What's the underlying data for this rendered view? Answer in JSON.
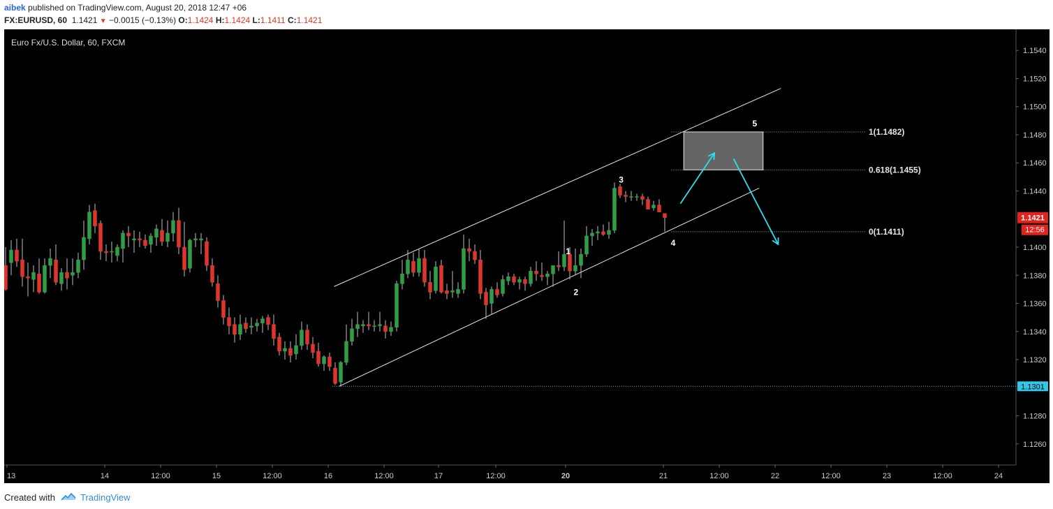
{
  "header": {
    "user": "aibek",
    "published_text": "published on TradingView.com, August 20, 2018 12:47 +06",
    "symbol": "FX:EURUSD, 60",
    "last": "1.1421",
    "change_arrow": "▼",
    "change": "−0.0015 (−0.13%)",
    "o_label": "O:",
    "o_value": "1.1424",
    "h_label": "H:",
    "h_value": "1.1424",
    "l_label": "L:",
    "l_value": "1.1411",
    "c_label": "C:",
    "c_value": "1.1421"
  },
  "footer": {
    "created_with": "Created with",
    "brand": "TradingView",
    "logo_icon": "tradingview-cloud-icon"
  },
  "colors": {
    "background": "#000000",
    "up": "#2ea043",
    "down": "#e0352b",
    "accent_cyan": "#28e0f0",
    "last_price": "#e0241d",
    "level_line": "#34c6e8"
  },
  "chart_data": {
    "type": "candlestick",
    "title": "Euro Fx/U.S. Dollar, 60, FXCM",
    "ylim": [
      1.1245,
      1.1555
    ],
    "y_ticks": [
      "1.1540",
      "1.1520",
      "1.1500",
      "1.1480",
      "1.1460",
      "1.1440",
      "1.1400",
      "1.1380",
      "1.1360",
      "1.1340",
      "1.1320",
      "1.1280",
      "1.1260"
    ],
    "x_ticks": [
      "13",
      "14",
      "12:00",
      "15",
      "12:00",
      "16",
      "12:00",
      "17",
      "12:00",
      "20",
      "21",
      "12:00",
      "22",
      "12:00",
      "23",
      "12:00",
      "24"
    ],
    "last_price": {
      "value": "1.1421",
      "time": "12:56"
    },
    "level_marker": {
      "value": 1.1301,
      "label": "1.1301"
    },
    "candles": [
      [
        1.1387,
        1.14,
        1.1369,
        1.137
      ],
      [
        1.1389,
        1.1405,
        1.138,
        1.1398
      ],
      [
        1.1398,
        1.1406,
        1.1386,
        1.139
      ],
      [
        1.1391,
        1.1406,
        1.1372,
        1.1379
      ],
      [
        1.1379,
        1.1389,
        1.1365,
        1.1378
      ],
      [
        1.1377,
        1.1387,
        1.1368,
        1.1382
      ],
      [
        1.1381,
        1.1392,
        1.1367,
        1.1368
      ],
      [
        1.1368,
        1.1392,
        1.1367,
        1.1387
      ],
      [
        1.1387,
        1.1399,
        1.1378,
        1.1392
      ],
      [
        1.1391,
        1.1402,
        1.1373,
        1.1375
      ],
      [
        1.1374,
        1.1385,
        1.1369,
        1.1382
      ],
      [
        1.1382,
        1.1392,
        1.137,
        1.1378
      ],
      [
        1.138,
        1.1392,
        1.1373,
        1.1382
      ],
      [
        1.1382,
        1.1396,
        1.1378,
        1.1391
      ],
      [
        1.1391,
        1.1419,
        1.1384,
        1.1407
      ],
      [
        1.1406,
        1.143,
        1.1402,
        1.1425
      ],
      [
        1.1426,
        1.1431,
        1.141,
        1.1415
      ],
      [
        1.1417,
        1.1419,
        1.1391,
        1.1397
      ],
      [
        1.1397,
        1.1402,
        1.139,
        1.1396
      ],
      [
        1.1397,
        1.1404,
        1.1389,
        1.1397
      ],
      [
        1.1394,
        1.1402,
        1.139,
        1.14
      ],
      [
        1.1399,
        1.1412,
        1.1389,
        1.141
      ],
      [
        1.141,
        1.1415,
        1.14,
        1.1408
      ],
      [
        1.1405,
        1.1412,
        1.1396,
        1.1406
      ],
      [
        1.1406,
        1.1411,
        1.14,
        1.1405
      ],
      [
        1.1405,
        1.1409,
        1.1399,
        1.1401
      ],
      [
        1.1402,
        1.141,
        1.1396,
        1.1408
      ],
      [
        1.1407,
        1.1416,
        1.1401,
        1.1413
      ],
      [
        1.1412,
        1.142,
        1.1401,
        1.1404
      ],
      [
        1.1404,
        1.1419,
        1.14,
        1.141
      ],
      [
        1.141,
        1.1425,
        1.1404,
        1.1419
      ],
      [
        1.1419,
        1.1428,
        1.1395,
        1.14
      ],
      [
        1.14,
        1.1418,
        1.1379,
        1.1384
      ],
      [
        1.1385,
        1.1406,
        1.1382,
        1.1405
      ],
      [
        1.1405,
        1.141,
        1.14,
        1.1406
      ],
      [
        1.1405,
        1.141,
        1.1395,
        1.1406
      ],
      [
        1.1404,
        1.1407,
        1.1383,
        1.1387
      ],
      [
        1.1387,
        1.1392,
        1.1372,
        1.1375
      ],
      [
        1.1374,
        1.138,
        1.1357,
        1.1362
      ],
      [
        1.1362,
        1.1366,
        1.1345,
        1.135
      ],
      [
        1.135,
        1.1357,
        1.1338,
        1.1344
      ],
      [
        1.1345,
        1.135,
        1.1332,
        1.1338
      ],
      [
        1.1338,
        1.1352,
        1.1334,
        1.1345
      ],
      [
        1.1346,
        1.135,
        1.1339,
        1.1342
      ],
      [
        1.1343,
        1.135,
        1.1338,
        1.1344
      ],
      [
        1.1344,
        1.1349,
        1.134,
        1.1346
      ],
      [
        1.1346,
        1.1351,
        1.1339,
        1.1349
      ],
      [
        1.135,
        1.1352,
        1.1341,
        1.1345
      ],
      [
        1.1345,
        1.1352,
        1.133,
        1.1335
      ],
      [
        1.1336,
        1.1339,
        1.1323,
        1.1326
      ],
      [
        1.1326,
        1.1333,
        1.132,
        1.1328
      ],
      [
        1.1328,
        1.1333,
        1.1318,
        1.1323
      ],
      [
        1.1324,
        1.1338,
        1.132,
        1.133
      ],
      [
        1.133,
        1.1347,
        1.1327,
        1.1341
      ],
      [
        1.1341,
        1.1345,
        1.1327,
        1.1331
      ],
      [
        1.1331,
        1.1336,
        1.1321,
        1.1325
      ],
      [
        1.1326,
        1.1332,
        1.1315,
        1.1317
      ],
      [
        1.1317,
        1.1323,
        1.1312,
        1.1322
      ],
      [
        1.1322,
        1.1325,
        1.1312,
        1.1315
      ],
      [
        1.1314,
        1.1318,
        1.1302,
        1.1303
      ],
      [
        1.1304,
        1.1319,
        1.1301,
        1.1318
      ],
      [
        1.1318,
        1.1345,
        1.1316,
        1.1333
      ],
      [
        1.1333,
        1.1349,
        1.133,
        1.1342
      ],
      [
        1.1342,
        1.1354,
        1.1336,
        1.1345
      ],
      [
        1.1344,
        1.1348,
        1.1339,
        1.1345
      ],
      [
        1.1345,
        1.1354,
        1.1341,
        1.1344
      ],
      [
        1.1344,
        1.1348,
        1.134,
        1.1344
      ],
      [
        1.1344,
        1.1354,
        1.134,
        1.1345
      ],
      [
        1.1344,
        1.1348,
        1.1335,
        1.134
      ],
      [
        1.134,
        1.1347,
        1.1337,
        1.1343
      ],
      [
        1.1343,
        1.1376,
        1.134,
        1.1374
      ],
      [
        1.1374,
        1.1391,
        1.137,
        1.1381
      ],
      [
        1.1381,
        1.1398,
        1.1378,
        1.1391
      ],
      [
        1.139,
        1.1396,
        1.1379,
        1.1382
      ],
      [
        1.1382,
        1.1399,
        1.1379,
        1.1392
      ],
      [
        1.1392,
        1.1398,
        1.1372,
        1.1375
      ],
      [
        1.1375,
        1.1383,
        1.1363,
        1.1368
      ],
      [
        1.1369,
        1.139,
        1.1367,
        1.1386
      ],
      [
        1.1387,
        1.1391,
        1.1367,
        1.1368
      ],
      [
        1.1369,
        1.1374,
        1.1363,
        1.1367
      ],
      [
        1.1368,
        1.1383,
        1.1364,
        1.1369
      ],
      [
        1.1367,
        1.1375,
        1.1364,
        1.137
      ],
      [
        1.137,
        1.1409,
        1.1367,
        1.1399
      ],
      [
        1.1399,
        1.1406,
        1.139,
        1.1397
      ],
      [
        1.1397,
        1.1402,
        1.1388,
        1.1391
      ],
      [
        1.1391,
        1.1398,
        1.1363,
        1.1367
      ],
      [
        1.1368,
        1.1371,
        1.1349,
        1.1359
      ],
      [
        1.136,
        1.1372,
        1.1352,
        1.137
      ],
      [
        1.137,
        1.1375,
        1.1364,
        1.1366
      ],
      [
        1.1367,
        1.138,
        1.1365,
        1.1377
      ],
      [
        1.1376,
        1.1382,
        1.1373,
        1.1379
      ],
      [
        1.1379,
        1.1381,
        1.1373,
        1.1375
      ],
      [
        1.1375,
        1.1379,
        1.137,
        1.1377
      ],
      [
        1.1377,
        1.1379,
        1.1369,
        1.1374
      ],
      [
        1.1374,
        1.1386,
        1.1372,
        1.1383
      ],
      [
        1.1383,
        1.139,
        1.1376,
        1.1381
      ],
      [
        1.138,
        1.1389,
        1.1376,
        1.1379
      ],
      [
        1.1379,
        1.1383,
        1.1373,
        1.1381
      ],
      [
        1.1381,
        1.1387,
        1.1372,
        1.1387
      ],
      [
        1.1387,
        1.1397,
        1.1383,
        1.1386
      ],
      [
        1.1386,
        1.1419,
        1.1383,
        1.1395
      ],
      [
        1.1395,
        1.14,
        1.1377,
        1.1383
      ],
      [
        1.1383,
        1.1399,
        1.138,
        1.1387
      ],
      [
        1.1387,
        1.1399,
        1.1378,
        1.1395
      ],
      [
        1.1395,
        1.1415,
        1.1393,
        1.1408
      ],
      [
        1.1408,
        1.1413,
        1.1401,
        1.141
      ],
      [
        1.141,
        1.1415,
        1.1405,
        1.1411
      ],
      [
        1.1411,
        1.1416,
        1.1408,
        1.1409
      ],
      [
        1.1409,
        1.1418,
        1.1406,
        1.1412
      ],
      [
        1.1412,
        1.1446,
        1.141,
        1.1442
      ],
      [
        1.1443,
        1.1445,
        1.1435,
        1.1437
      ],
      [
        1.1437,
        1.144,
        1.1432,
        1.1436
      ],
      [
        1.1436,
        1.144,
        1.1433,
        1.1436
      ],
      [
        1.1436,
        1.1438,
        1.1433,
        1.1436
      ],
      [
        1.1436,
        1.1438,
        1.143,
        1.1434
      ],
      [
        1.1434,
        1.1436,
        1.1427,
        1.1427
      ],
      [
        1.1428,
        1.1433,
        1.1426,
        1.143
      ],
      [
        1.143,
        1.1434,
        1.1425,
        1.1425
      ],
      [
        1.1424,
        1.1424,
        1.1411,
        1.1421
      ]
    ],
    "annotations": {
      "wave_labels": [
        {
          "text": "1",
          "i": 100.7,
          "p": 1.1397
        },
        {
          "text": "2",
          "i": 102.1,
          "p": 1.1368
        },
        {
          "text": "3",
          "i": 110.2,
          "p": 1.1448
        },
        {
          "text": "4",
          "i": 119.5,
          "p": 1.1403
        },
        {
          "text": "5",
          "i": 134.1,
          "p": 1.1488
        }
      ],
      "channel_upper": {
        "from": {
          "i": 58.8,
          "p": 1.1372
        },
        "to": {
          "i": 138.8,
          "p": 1.1513
        }
      },
      "channel_lower": {
        "from": {
          "i": 59.7,
          "p": 1.1301
        },
        "to": {
          "i": 134.9,
          "p": 1.1442
        }
      },
      "fib_levels": [
        {
          "label": "1(1.1482)",
          "value": 1.1482
        },
        {
          "label": "0.618(1.1455)",
          "value": 1.1455
        },
        {
          "label": "0(1.1411)",
          "value": 1.1411
        }
      ],
      "target_box": {
        "i0": 121.4,
        "i1": 135.6,
        "top": 1.1482,
        "bottom": 1.1455
      },
      "arrows": [
        {
          "from": {
            "i": 120.8,
            "p": 1.1431
          },
          "to": {
            "i": 126.9,
            "p": 1.1467
          }
        },
        {
          "from": {
            "i": 130.3,
            "p": 1.1463
          },
          "to": {
            "i": 138.3,
            "p": 1.1402
          }
        }
      ]
    }
  }
}
